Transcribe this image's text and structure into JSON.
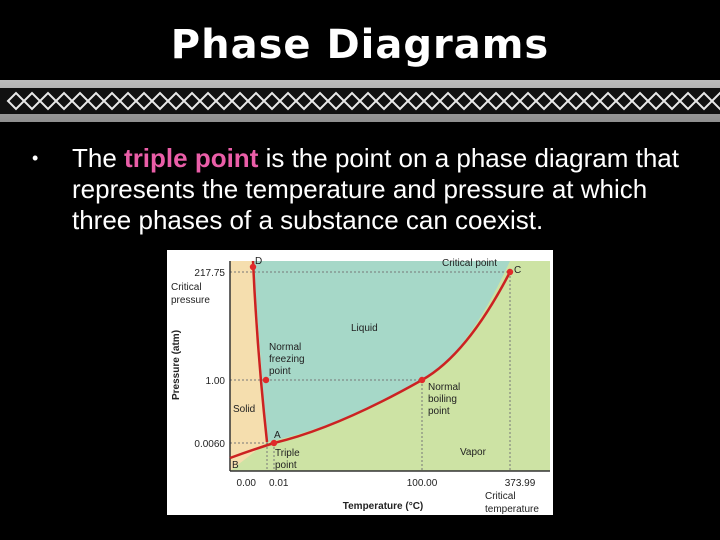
{
  "slide": {
    "title": "Phase Diagrams",
    "bullet": {
      "pre": "The ",
      "highlight": "triple point",
      "post": " is the point on a phase diagram that represents the temperature and pressure at which three phases of a substance can coexist."
    }
  },
  "diagram": {
    "colors": {
      "solid": "#f5deae",
      "liquid": "#a6d8c8",
      "vapor": "#cde3a4",
      "curve": "#cc2222",
      "point": "#e02a2a"
    },
    "y_ticks": {
      "critical": "217.75",
      "normal": "1.00",
      "triple": "0.0060"
    },
    "y_tick_caption": [
      "Critical",
      "pressure"
    ],
    "x_ticks": {
      "zero": "0.00",
      "triple": "0.01",
      "boiling": "100.00",
      "critical": "373.99"
    },
    "x_tick_caption": [
      "Critical",
      "temperature"
    ],
    "y_axis_label": "Pressure (atm)",
    "x_axis_label": "Temperature (°C)",
    "regions": {
      "liquid": "Liquid",
      "solid": "Solid",
      "vapor": "Vapor"
    },
    "points": {
      "D": "D",
      "C": "C",
      "A": "A",
      "B": "B",
      "critical_point": "Critical point",
      "normal_freezing": [
        "Normal",
        "freezing",
        "point"
      ],
      "normal_boiling": [
        "Normal",
        "boiling",
        "point"
      ],
      "triple": [
        "Triple",
        "point"
      ]
    }
  }
}
